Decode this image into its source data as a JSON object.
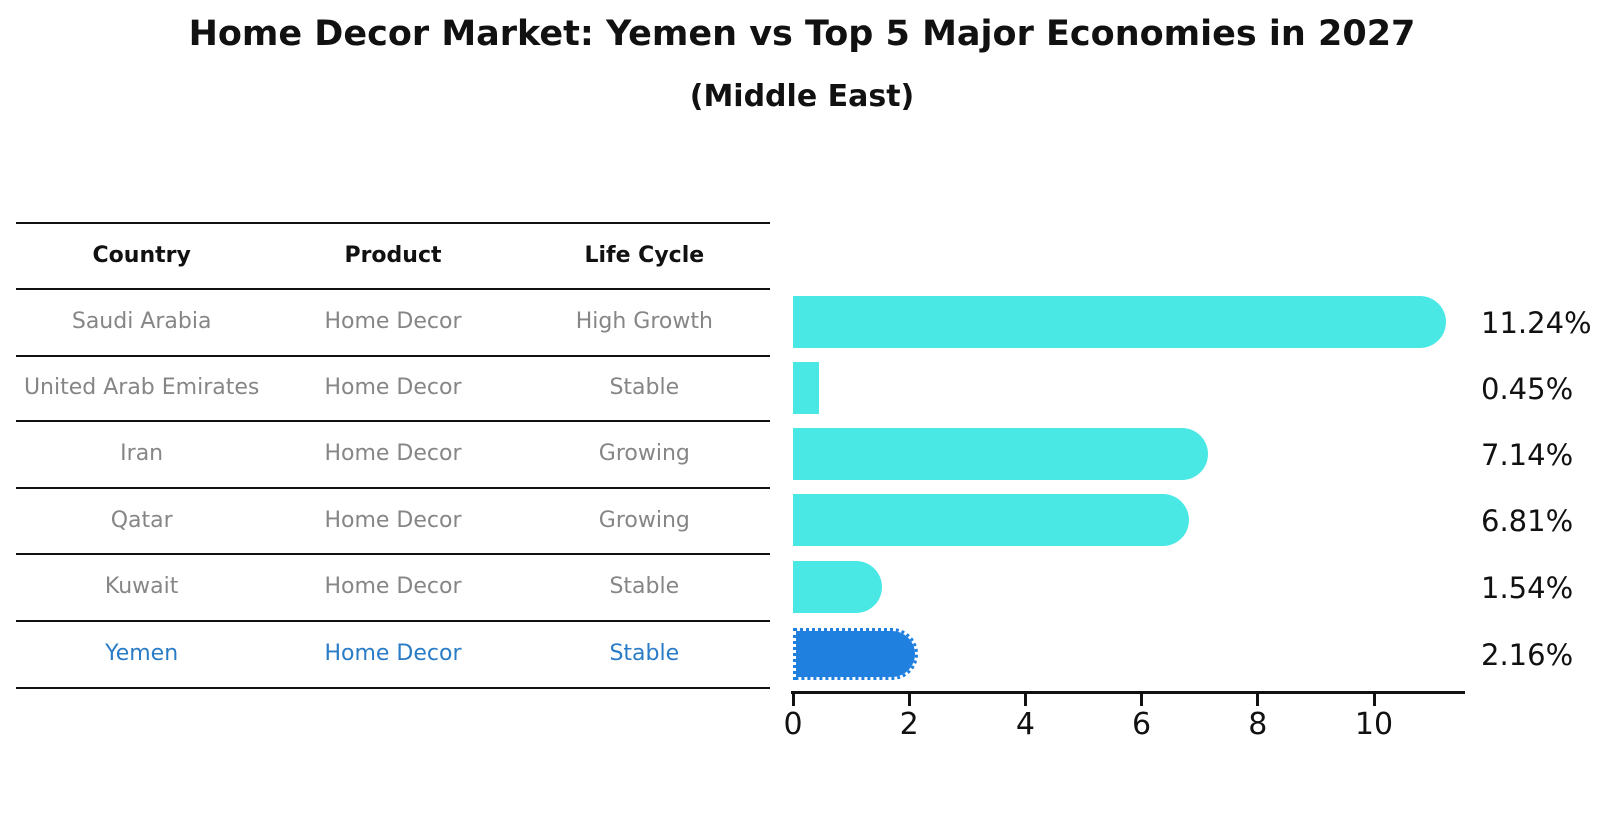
{
  "title": "Home Decor Market: Yemen vs Top 5 Major Economies in 2027",
  "subtitle": "(Middle East)",
  "table": {
    "headers": [
      "Country",
      "Product",
      "Life Cycle"
    ],
    "rows": [
      {
        "country": "Saudi Arabia",
        "product": "Home Decor",
        "life_cycle": "High Growth",
        "highlight": false
      },
      {
        "country": "United Arab Emirates",
        "product": "Home Decor",
        "life_cycle": "Stable",
        "highlight": false
      },
      {
        "country": "Iran",
        "product": "Home Decor",
        "life_cycle": "Growing",
        "highlight": false
      },
      {
        "country": "Qatar",
        "product": "Home Decor",
        "life_cycle": "Growing",
        "highlight": false
      },
      {
        "country": "Kuwait",
        "product": "Home Decor",
        "life_cycle": "Stable",
        "highlight": false
      },
      {
        "country": "Yemen",
        "product": "Home Decor",
        "life_cycle": "Stable",
        "highlight": true
      }
    ]
  },
  "chart_data": {
    "type": "bar",
    "orientation": "horizontal",
    "title": "Home Decor Market: Yemen vs Top 5 Major Economies in 2027",
    "subtitle": "(Middle East)",
    "categories": [
      "Saudi Arabia",
      "United Arab Emirates",
      "Iran",
      "Qatar",
      "Kuwait",
      "Yemen"
    ],
    "values": [
      11.24,
      0.45,
      7.14,
      6.81,
      1.54,
      2.16
    ],
    "value_labels": [
      "11.24%",
      "0.45%",
      "7.14%",
      "6.81%",
      "1.54%",
      "2.16%"
    ],
    "x_ticks": [
      0,
      2,
      4,
      6,
      8,
      10
    ],
    "xlim": [
      0,
      11.6
    ],
    "grid": false,
    "legend": "none",
    "bar_color": "#4ae8e4",
    "highlight_color": "#2080e0",
    "highlight_index": 5,
    "highlight_label_color": "#2a7cc6"
  }
}
